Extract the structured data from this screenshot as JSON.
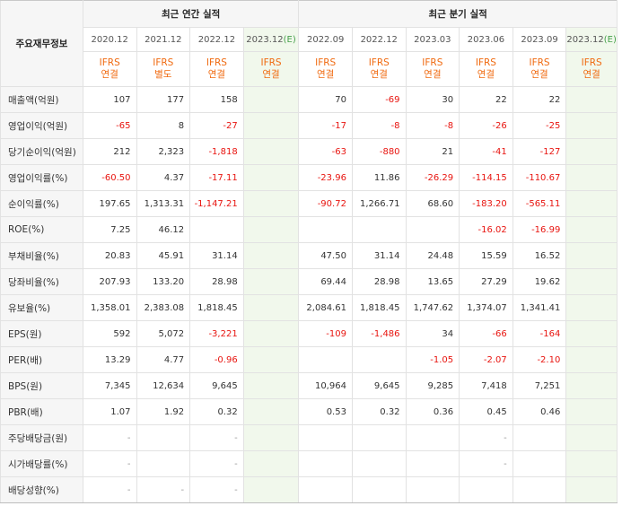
{
  "header": {
    "corner_label": "주요재무정보",
    "annual_group": "최근 연간 실적",
    "quarterly_group": "최근 분기 실적"
  },
  "periods": {
    "annual": [
      {
        "label": "2020.12",
        "estimate": false,
        "basis": [
          "IFRS",
          "연결"
        ]
      },
      {
        "label": "2021.12",
        "estimate": false,
        "basis": [
          "IFRS",
          "별도"
        ]
      },
      {
        "label": "2022.12",
        "estimate": false,
        "basis": [
          "IFRS",
          "연결"
        ]
      },
      {
        "label": "2023.12",
        "estimate": true,
        "estimate_mark": "(E)",
        "basis": [
          "IFRS",
          "연결"
        ]
      }
    ],
    "quarterly": [
      {
        "label": "2022.09",
        "estimate": false,
        "basis": [
          "IFRS",
          "연결"
        ]
      },
      {
        "label": "2022.12",
        "estimate": false,
        "basis": [
          "IFRS",
          "연결"
        ]
      },
      {
        "label": "2023.03",
        "estimate": false,
        "basis": [
          "IFRS",
          "연결"
        ]
      },
      {
        "label": "2023.06",
        "estimate": false,
        "basis": [
          "IFRS",
          "연결"
        ]
      },
      {
        "label": "2023.09",
        "estimate": false,
        "basis": [
          "IFRS",
          "연결"
        ]
      },
      {
        "label": "2023.12",
        "estimate": true,
        "estimate_mark": "(E)",
        "basis": [
          "IFRS",
          "연결"
        ]
      }
    ]
  },
  "rows": [
    {
      "label": "매출액(억원)",
      "annual": [
        "107",
        "177",
        "158",
        ""
      ],
      "quarterly": [
        "70",
        "-69",
        "30",
        "22",
        "22",
        ""
      ]
    },
    {
      "label": "영업이익(억원)",
      "annual": [
        "-65",
        "8",
        "-27",
        ""
      ],
      "quarterly": [
        "-17",
        "-8",
        "-8",
        "-26",
        "-25",
        ""
      ]
    },
    {
      "label": "당기순이익(억원)",
      "annual": [
        "212",
        "2,323",
        "-1,818",
        ""
      ],
      "quarterly": [
        "-63",
        "-880",
        "21",
        "-41",
        "-127",
        ""
      ]
    },
    {
      "label": "영업이익률(%)",
      "annual": [
        "-60.50",
        "4.37",
        "-17.11",
        ""
      ],
      "quarterly": [
        "-23.96",
        "11.86",
        "-26.29",
        "-114.15",
        "-110.67",
        ""
      ]
    },
    {
      "label": "순이익률(%)",
      "annual": [
        "197.65",
        "1,313.31",
        "-1,147.21",
        ""
      ],
      "quarterly": [
        "-90.72",
        "1,266.71",
        "68.60",
        "-183.20",
        "-565.11",
        ""
      ]
    },
    {
      "label": "ROE(%)",
      "annual": [
        "7.25",
        "46.12",
        "",
        ""
      ],
      "quarterly": [
        "",
        "",
        "",
        "-16.02",
        "-16.99",
        ""
      ]
    },
    {
      "label": "부채비율(%)",
      "annual": [
        "20.83",
        "45.91",
        "31.14",
        ""
      ],
      "quarterly": [
        "47.50",
        "31.14",
        "24.48",
        "15.59",
        "16.52",
        ""
      ]
    },
    {
      "label": "당좌비율(%)",
      "annual": [
        "207.93",
        "133.20",
        "28.98",
        ""
      ],
      "quarterly": [
        "69.44",
        "28.98",
        "13.65",
        "27.29",
        "19.62",
        ""
      ]
    },
    {
      "label": "유보율(%)",
      "annual": [
        "1,358.01",
        "2,383.08",
        "1,818.45",
        ""
      ],
      "quarterly": [
        "2,084.61",
        "1,818.45",
        "1,747.62",
        "1,374.07",
        "1,341.41",
        ""
      ]
    },
    {
      "label": "EPS(원)",
      "annual": [
        "592",
        "5,072",
        "-3,221",
        ""
      ],
      "quarterly": [
        "-109",
        "-1,486",
        "34",
        "-66",
        "-164",
        ""
      ]
    },
    {
      "label": "PER(배)",
      "annual": [
        "13.29",
        "4.77",
        "-0.96",
        ""
      ],
      "quarterly": [
        "",
        "",
        "-1.05",
        "-2.07",
        "-2.10",
        ""
      ]
    },
    {
      "label": "BPS(원)",
      "annual": [
        "7,345",
        "12,634",
        "9,645",
        ""
      ],
      "quarterly": [
        "10,964",
        "9,645",
        "9,285",
        "7,418",
        "7,251",
        ""
      ]
    },
    {
      "label": "PBR(배)",
      "annual": [
        "1.07",
        "1.92",
        "0.32",
        ""
      ],
      "quarterly": [
        "0.53",
        "0.32",
        "0.36",
        "0.45",
        "0.46",
        ""
      ]
    },
    {
      "label": "주당배당금(원)",
      "annual": [
        "-",
        "",
        "-",
        ""
      ],
      "quarterly": [
        "",
        "",
        "",
        "-",
        "",
        ""
      ]
    },
    {
      "label": "시가배당률(%)",
      "annual": [
        "-",
        "",
        "-",
        ""
      ],
      "quarterly": [
        "",
        "",
        "",
        "-",
        "",
        ""
      ]
    },
    {
      "label": "배당성향(%)",
      "annual": [
        "-",
        "-",
        "-",
        ""
      ],
      "quarterly": [
        "",
        "",
        "",
        "",
        "",
        ""
      ]
    }
  ],
  "colors": {
    "negative": "#e8140f",
    "basis_text": "#f06a10",
    "estimate_bg": "#f1f8ec",
    "estimate_mark": "#45a04a",
    "header_bg": "#f6f6f6"
  }
}
